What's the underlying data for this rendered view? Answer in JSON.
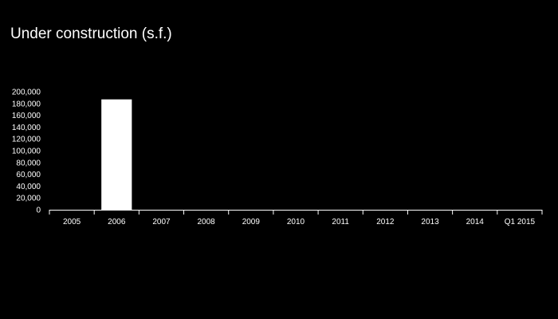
{
  "chart_data": {
    "type": "bar",
    "title": "Under construction (s.f.)",
    "xlabel": "",
    "ylabel": "",
    "categories": [
      "2005",
      "2006",
      "2007",
      "2008",
      "2009",
      "2010",
      "2011",
      "2012",
      "2013",
      "2014",
      "Q1 2015"
    ],
    "values": [
      0,
      187000,
      0,
      0,
      0,
      0,
      0,
      0,
      0,
      0,
      0
    ],
    "ylim": [
      0,
      200000
    ],
    "yticks": [
      0,
      20000,
      40000,
      60000,
      80000,
      100000,
      120000,
      140000,
      160000,
      180000,
      200000
    ],
    "ytick_labels": [
      "0",
      "20,000",
      "40,000",
      "60,000",
      "80,000",
      "100,000",
      "120,000",
      "140,000",
      "160,000",
      "180,000",
      "200,000"
    ],
    "grid": false,
    "legend": "none",
    "colors": {
      "background": "#000000",
      "bar": "#ffffff",
      "axis": "#ffffff",
      "text": "#ffffff"
    }
  }
}
